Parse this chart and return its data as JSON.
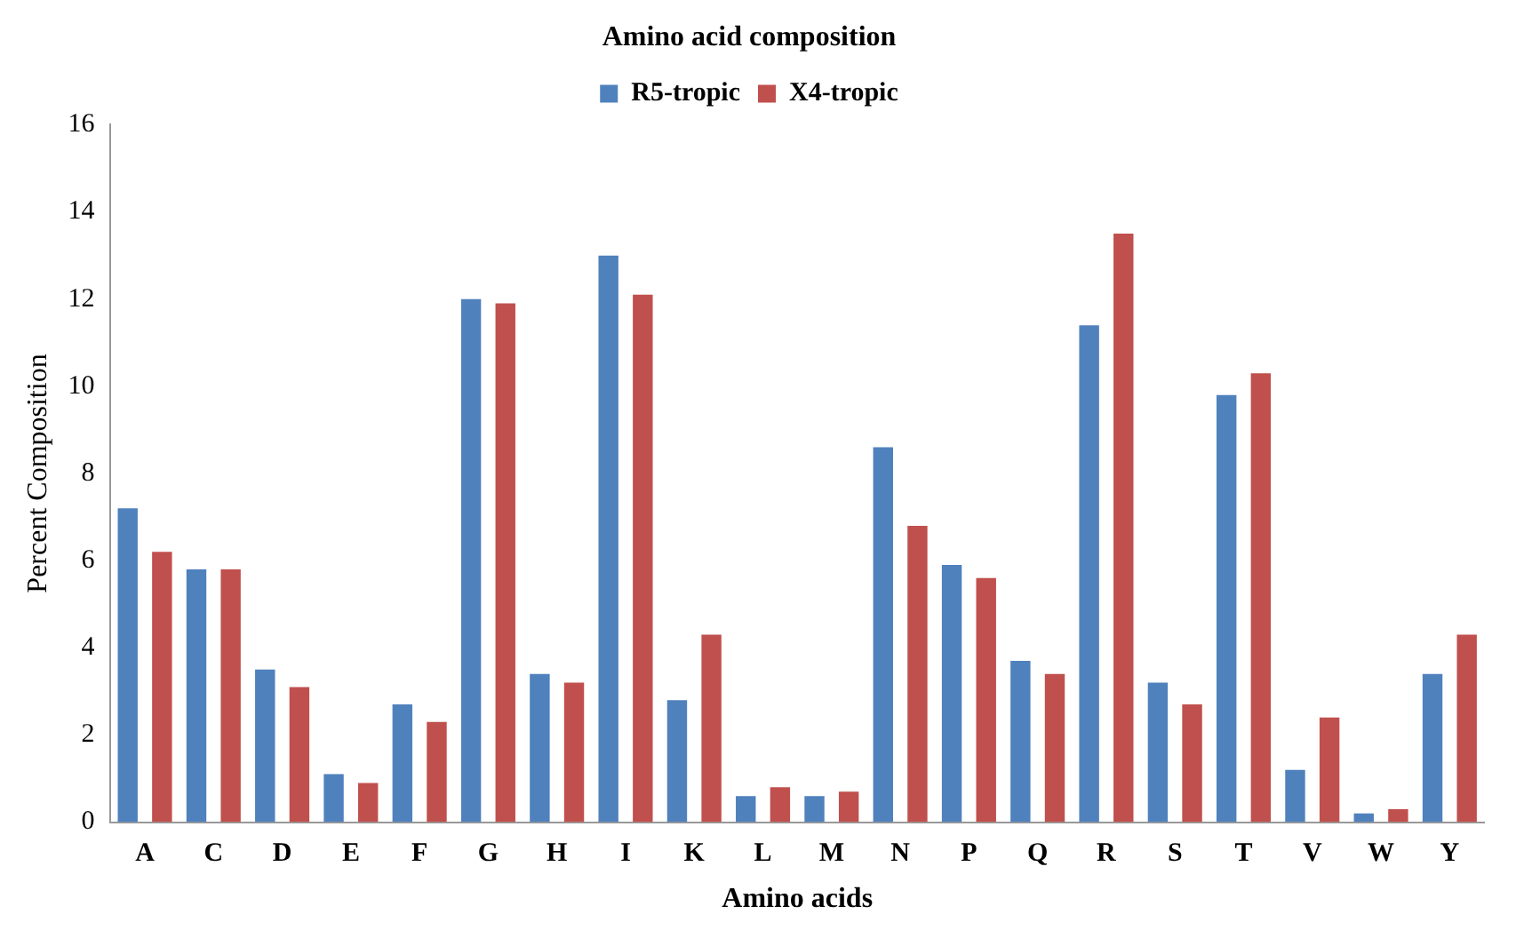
{
  "chart_data": {
    "type": "bar",
    "title": "Amino acid composition",
    "xlabel": "Amino acids",
    "ylabel": "Percent Composition",
    "categories": [
      "A",
      "C",
      "D",
      "E",
      "F",
      "G",
      "H",
      "I",
      "K",
      "L",
      "M",
      "N",
      "P",
      "Q",
      "R",
      "S",
      "T",
      "V",
      "W",
      "Y"
    ],
    "series": [
      {
        "name": "R5-tropic",
        "color": "#4f81bd",
        "values": [
          7.2,
          5.8,
          3.5,
          1.1,
          2.7,
          12.0,
          3.4,
          13.0,
          2.8,
          0.6,
          0.6,
          8.6,
          5.9,
          3.7,
          11.4,
          3.2,
          9.8,
          1.2,
          0.2,
          3.4
        ]
      },
      {
        "name": "X4-tropic",
        "color": "#c0504d",
        "values": [
          6.2,
          5.8,
          3.1,
          0.9,
          2.3,
          11.9,
          3.2,
          12.1,
          4.3,
          0.8,
          0.7,
          6.8,
          5.6,
          3.4,
          13.5,
          2.7,
          10.3,
          2.4,
          0.3,
          4.3
        ]
      }
    ],
    "ylim": [
      0,
      16
    ],
    "yticks": [
      0,
      2,
      4,
      6,
      8,
      10,
      12,
      14,
      16
    ],
    "grid": false,
    "legend": "top"
  }
}
